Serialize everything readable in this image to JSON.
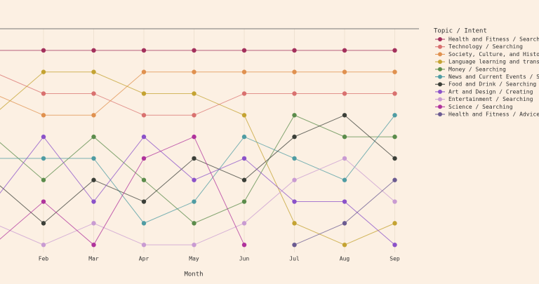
{
  "chart_data": {
    "type": "bump",
    "x_label": "Month",
    "legend_title": "Topic / Intent",
    "legend_position": "right",
    "categories": [
      null,
      "Feb",
      "Mar",
      "Apr",
      "May",
      "Jun",
      "Jul",
      "Aug",
      "Sep"
    ],
    "ylim": [
      11,
      0
    ],
    "series": [
      {
        "name": "Health and Fitness / Searching",
        "color": "#a3305c",
        "values": [
          1,
          1,
          1,
          1,
          1,
          1,
          1,
          1,
          1
        ]
      },
      {
        "name": "Technology / Searching",
        "color": "#d9716f",
        "values": [
          2,
          3,
          3,
          4,
          4,
          3,
          3,
          3,
          3
        ]
      },
      {
        "name": "Society, Culture, and History /",
        "color": "#e0914f",
        "values": [
          3,
          4,
          4,
          2,
          2,
          2,
          2,
          2,
          2
        ]
      },
      {
        "name": "Language learning and translati",
        "color": "#c4a332",
        "values": [
          4,
          2,
          2,
          3,
          3,
          4,
          9,
          10,
          9
        ]
      },
      {
        "name": "Money / Searching",
        "color": "#5b8c4b",
        "values": [
          5,
          7,
          5,
          7,
          9,
          8,
          4,
          5,
          5
        ]
      },
      {
        "name": "News and Current Events / Searc",
        "color": "#4f9ca3",
        "values": [
          6,
          6,
          6,
          9,
          8,
          5,
          6,
          7,
          4
        ]
      },
      {
        "name": "Food and Drink / Searching",
        "color": "#3b3f38",
        "values": [
          7,
          9,
          7,
          8,
          6,
          7,
          5,
          4,
          6
        ]
      },
      {
        "name": "Art and Design / Creating",
        "color": "#8b52c9",
        "values": [
          8,
          5,
          8,
          5,
          7,
          6,
          8,
          8,
          10
        ]
      },
      {
        "name": "Entertainment / Searching",
        "color": "#c99bd2",
        "values": [
          9,
          10,
          9,
          10,
          10,
          9,
          7,
          6,
          8
        ]
      },
      {
        "name": "Science / Searching",
        "color": "#b0339c",
        "values": [
          10,
          8,
          10,
          6,
          5,
          10,
          null,
          null,
          null
        ]
      },
      {
        "name": "Health and Fitness / Advice",
        "color": "#6b5b91",
        "values": [
          null,
          null,
          null,
          null,
          null,
          null,
          10,
          9,
          7
        ]
      }
    ]
  }
}
